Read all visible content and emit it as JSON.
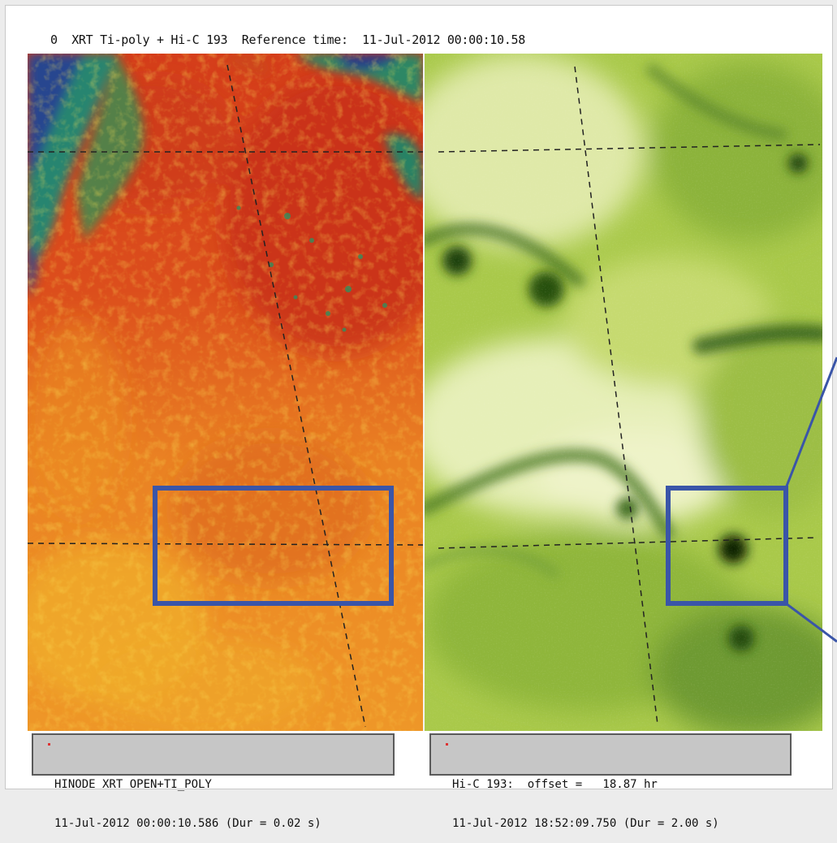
{
  "header": {
    "title": "0  XRT Ti-poly + Hi-C 193  Reference time:  11-Jul-2012 00:00:10.58"
  },
  "left_panel": {
    "label_line1": "HINODE XRT OPEN+TI_POLY",
    "label_line2": "11-Jul-2012 00:00:10.586 (Dur = 0.02 s)"
  },
  "right_panel": {
    "label_line1": "Hi-C 193:  offset =   18.87 hr",
    "label_line2": "11-Jul-2012 18:52:09.750 (Dur = 2.00 s)"
  },
  "colors": {
    "highlight_box": "#3a55a8",
    "left_colormap": "red-temperature",
    "right_colormap": "green"
  }
}
